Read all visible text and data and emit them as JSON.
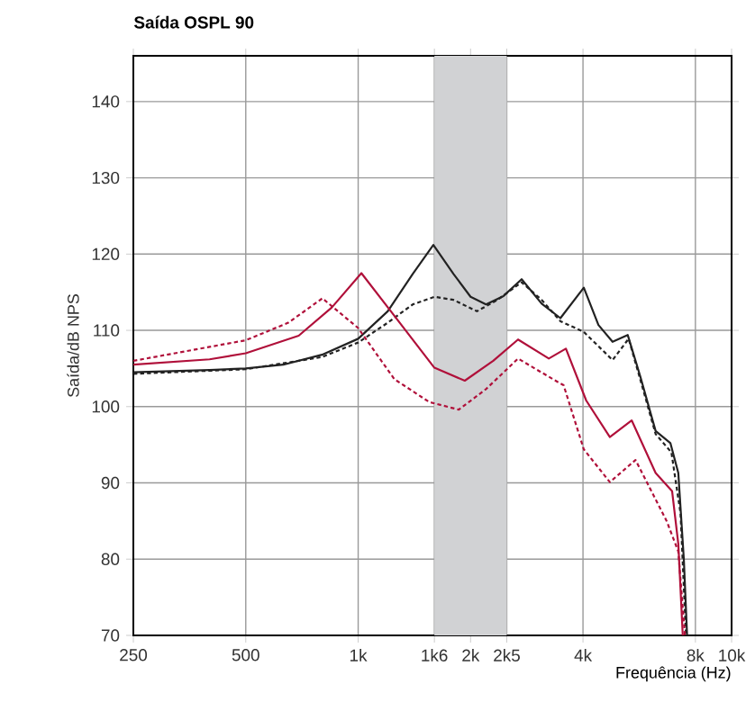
{
  "chart_data": {
    "type": "line",
    "title": "Saída OSPL 90",
    "xlabel": "Frequência (Hz)",
    "ylabel": "Saída/dB NPS",
    "log": "x",
    "grid": true,
    "marker": "none",
    "xlim": [
      250,
      10000
    ],
    "ylim": [
      70,
      146
    ],
    "xticks": [
      250,
      500,
      {
        "value": 1000,
        "label": "1k"
      },
      {
        "value": 1600,
        "label": "1k6"
      },
      {
        "value": 2000,
        "label": "2k"
      },
      {
        "value": 2500,
        "label": "2k5"
      },
      {
        "value": 4000,
        "label": "4k"
      },
      {
        "value": 8000,
        "label": "8k"
      },
      {
        "value": 10000,
        "label": "10k"
      }
    ],
    "yticks": [
      70,
      80,
      90,
      100,
      110,
      120,
      130,
      140
    ],
    "bands": [
      {
        "axis": "x",
        "from": 1600,
        "to": 2500,
        "color": "#d1d2d4"
      }
    ],
    "series": [
      {
        "color": "#222222",
        "line_style": "solid",
        "x": [
          250,
          400,
          500,
          630,
          800,
          1000,
          1200,
          1400,
          1590,
          1800,
          2000,
          2200,
          2450,
          2740,
          3100,
          3480,
          4020,
          4400,
          4800,
          5270,
          5700,
          6260,
          6860,
          7200,
          7450,
          7600
        ],
        "values": [
          104.5,
          104.8,
          105,
          105.5,
          106.8,
          108.9,
          112.5,
          117.4,
          121.2,
          117.4,
          114.4,
          113.4,
          114.5,
          116.7,
          113.5,
          111.6,
          115.6,
          110.7,
          108.5,
          109.4,
          103.9,
          96.8,
          95.2,
          91.3,
          80,
          70
        ]
      },
      {
        "color": "#222222",
        "line_style": "dashed",
        "x": [
          250,
          500,
          800,
          1000,
          1200,
          1400,
          1600,
          1800,
          2080,
          2360,
          2740,
          3100,
          3480,
          4020,
          4800,
          5300,
          5700,
          6260,
          6900,
          7300,
          7550
        ],
        "values": [
          104.3,
          104.9,
          106.5,
          108.4,
          111,
          113.4,
          114.4,
          114,
          112.5,
          114,
          116.3,
          114,
          111.2,
          109.8,
          106.1,
          108.9,
          103.5,
          96.4,
          94,
          86,
          70
        ]
      },
      {
        "color": "#b0103a",
        "line_style": "solid",
        "x": [
          250,
          400,
          500,
          693,
          850,
          1020,
          1250,
          1600,
          1930,
          2300,
          2680,
          3240,
          3600,
          4080,
          4720,
          5400,
          6260,
          6930,
          7200,
          7400
        ],
        "values": [
          105.5,
          106.2,
          107,
          109.3,
          113,
          117.5,
          111.9,
          105.1,
          103.4,
          106,
          108.8,
          106.3,
          107.6,
          100.8,
          96,
          98.2,
          91.3,
          88.9,
          82,
          70
        ]
      },
      {
        "color": "#b0103a",
        "line_style": "dashed",
        "x": [
          250,
          500,
          650,
          802,
          1000,
          1250,
          1550,
          1860,
          2200,
          2680,
          3350,
          3550,
          4020,
          4720,
          5530,
          6700,
          7200,
          7500
        ],
        "values": [
          106,
          108.7,
          111,
          114.2,
          110.3,
          103.6,
          100.6,
          99.6,
          102.3,
          106.3,
          103.5,
          102.8,
          94.4,
          90.1,
          93,
          85,
          81,
          70
        ]
      }
    ]
  }
}
